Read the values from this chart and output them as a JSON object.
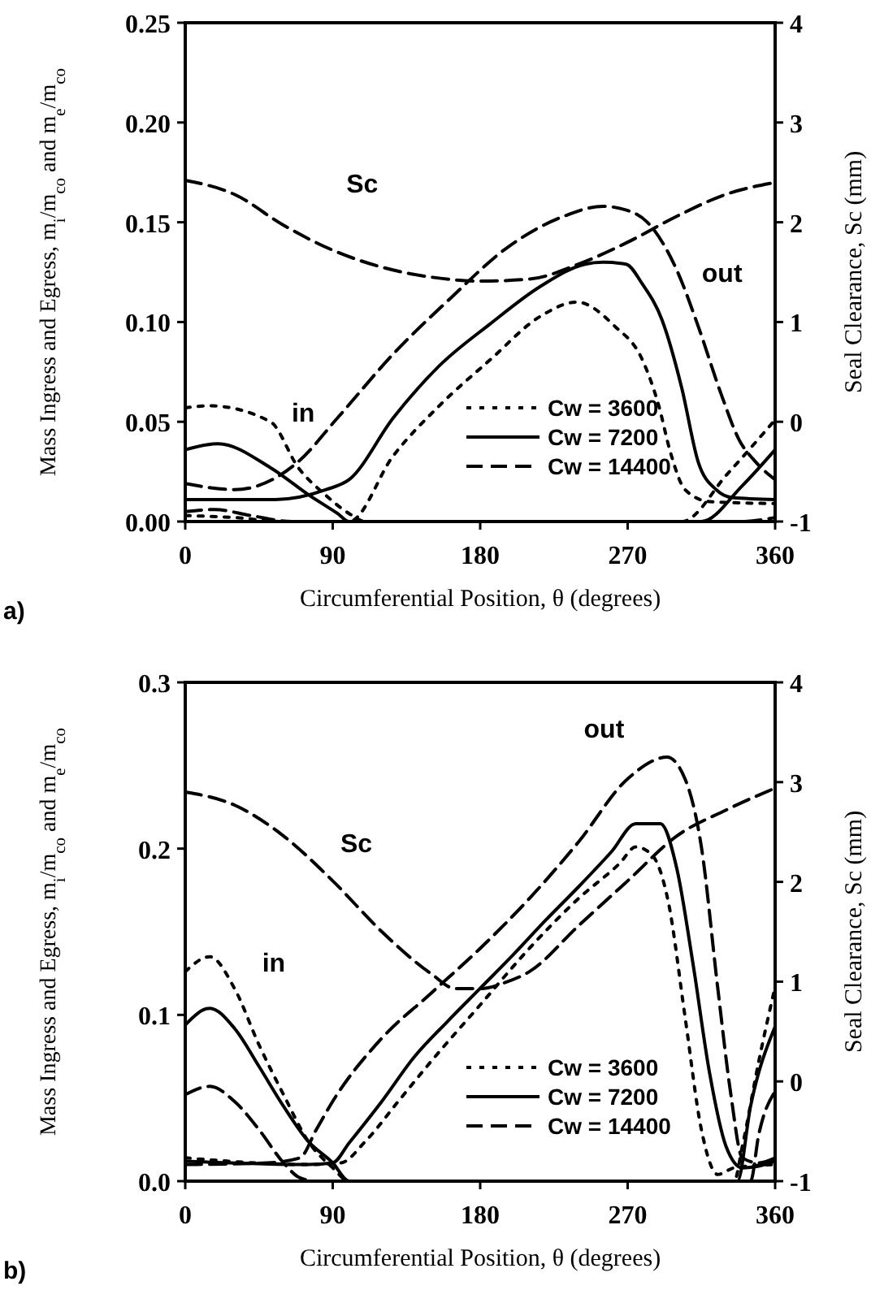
{
  "chart_data": [
    {
      "type": "line",
      "title": "a)",
      "xlabel": "Circumferential Position, θ (degrees)",
      "ylabel": "Mass Ingress and Egress, m$_{i}$/m$_{co}$ and m$_{e}$/m$_{co}$",
      "y2label": "Seal Clearance, Sc (mm)",
      "xlim": [
        0,
        360
      ],
      "xticks": [
        0,
        90,
        180,
        270,
        360
      ],
      "ylim": [
        0,
        0.25
      ],
      "yticks": [
        {
          "value": 0,
          "label": "0.00"
        },
        {
          "value": 0.05,
          "label": "0.05"
        },
        {
          "value": 0.1,
          "label": "0.10"
        },
        {
          "value": 0.15,
          "label": "0.15"
        },
        {
          "value": 0.2,
          "label": "0.20"
        },
        {
          "value": 0.25,
          "label": "0.25"
        }
      ],
      "y2lim": [
        -1,
        4
      ],
      "y2ticks": [
        -1,
        0,
        1,
        2,
        3,
        4
      ],
      "legend": "bottom right",
      "grid": false,
      "marker": "none",
      "annotations": [
        "Sc",
        "in",
        "out"
      ],
      "series": [
        {
          "name": "Cw = 3600",
          "color": "#000000",
          "line_style": "dotted",
          "x": [
            0,
            30,
            60,
            100,
            127,
            155,
            186,
            217,
            239,
            262,
            279,
            289,
            296,
            305,
            320,
            360
          ],
          "values": [
            0.003,
            0.002,
            0,
            0,
            0.033,
            0.058,
            0.081,
            0.103,
            0.11,
            0.098,
            0.081,
            0.058,
            0.035,
            0.016,
            0.01,
            0.009
          ]
        },
        {
          "color": "#000000",
          "line_style": "dotted",
          "x": [
            0,
            15,
            52,
            69,
            86,
            100,
            110,
            303,
            331,
            360
          ],
          "values": [
            0.057,
            0.058,
            0.05,
            0.027,
            0.013,
            0.004,
            0,
            0,
            0.024,
            0.051
          ]
        },
        {
          "name": "Cw = 7200",
          "color": "#000000",
          "line_style": "solid",
          "x": [
            0,
            55,
            86,
            100,
            127,
            155,
            186,
            217,
            244,
            255,
            269,
            279,
            291,
            303,
            313,
            324,
            334,
            360
          ],
          "values": [
            0.011,
            0.011,
            0.016,
            0.021,
            0.052,
            0.078,
            0.099,
            0.118,
            0.129,
            0.13,
            0.129,
            0.119,
            0.101,
            0.067,
            0.03,
            0.016,
            0.012,
            0.011
          ]
        },
        {
          "color": "#000000",
          "line_style": "solid",
          "x": [
            0,
            20,
            52,
            76,
            93,
            100,
            315,
            340,
            360
          ],
          "values": [
            0.036,
            0.039,
            0.027,
            0.013,
            0.004,
            0,
            0,
            0.018,
            0.036
          ]
        },
        {
          "name": "Cw = 14400",
          "color": "#000000",
          "line_style": "dashed",
          "x": [
            0,
            30,
            69,
            93,
            127,
            162,
            196,
            231,
            255,
            265,
            282,
            300,
            313,
            327,
            338,
            348,
            360
          ],
          "values": [
            0.019,
            0.016,
            0.03,
            0.052,
            0.084,
            0.112,
            0.137,
            0.153,
            0.158,
            0.157,
            0.15,
            0.126,
            0.098,
            0.064,
            0.041,
            0.03,
            0.021
          ]
        },
        {
          "color": "#000000",
          "line_style": "dashed",
          "x": [
            0,
            18,
            40,
            65,
            340,
            360
          ],
          "values": [
            0.005,
            0.006,
            0.003,
            0,
            0,
            0.002
          ]
        },
        {
          "color": "#000000",
          "line_style": "dashed",
          "axis": "y2",
          "x": [
            0,
            30,
            60,
            90,
            120,
            150,
            180,
            210,
            240,
            270,
            300,
            330,
            360
          ],
          "values": [
            2.42,
            2.28,
            1.97,
            1.72,
            1.55,
            1.45,
            1.41,
            1.43,
            1.58,
            1.8,
            2.06,
            2.28,
            2.4
          ]
        }
      ]
    },
    {
      "type": "line",
      "title": "b)",
      "xlabel": "Circumferential Position, θ (degrees)",
      "ylabel": "Mass Ingress and Egress, m$_{i}$/m$_{co}$ and m$_{e}$/m$_{co}$",
      "y2label": "Seal Clearance, Sc (mm)",
      "xlim": [
        0,
        360
      ],
      "xticks": [
        0,
        90,
        180,
        270,
        360
      ],
      "ylim": [
        0,
        0.3
      ],
      "yticks": [
        {
          "value": 0,
          "label": "0.0"
        },
        {
          "value": 0.1,
          "label": "0.1"
        },
        {
          "value": 0.2,
          "label": "0.2"
        },
        {
          "value": 0.3,
          "label": "0.3"
        }
      ],
      "y2lim": [
        -1,
        4
      ],
      "y2ticks": [
        -1,
        0,
        1,
        2,
        3,
        4
      ],
      "legend": "bottom right",
      "grid": false,
      "marker": "none",
      "annotations": [
        "Sc",
        "in",
        "out"
      ],
      "series": [
        {
          "name": "Cw = 3600",
          "color": "#000000",
          "line_style": "dotted",
          "x": [
            0,
            75,
            95,
            110,
            130,
            150,
            180,
            210,
            240,
            265,
            275,
            285,
            295,
            305,
            315,
            325,
            335,
            360
          ],
          "values": [
            0.014,
            0.01,
            0.011,
            0.024,
            0.048,
            0.072,
            0.106,
            0.14,
            0.17,
            0.191,
            0.201,
            0.196,
            0.167,
            0.099,
            0.031,
            0.004,
            0.008,
            0.01
          ]
        },
        {
          "color": "#000000",
          "line_style": "dotted",
          "x": [
            0,
            15,
            30,
            45,
            60,
            75,
            90,
            100,
            335,
            340,
            350,
            360
          ],
          "values": [
            0.126,
            0.135,
            0.116,
            0.082,
            0.052,
            0.024,
            0.008,
            0,
            0,
            0.021,
            0.072,
            0.117
          ]
        },
        {
          "name": "Cw = 7200",
          "color": "#000000",
          "line_style": "solid",
          "x": [
            0,
            75,
            90,
            100,
            120,
            140,
            160,
            180,
            200,
            220,
            240,
            260,
            275,
            290,
            300,
            310,
            320,
            330,
            340,
            350,
            360
          ],
          "values": [
            0.012,
            0.01,
            0.011,
            0.023,
            0.048,
            0.075,
            0.096,
            0.116,
            0.136,
            0.157,
            0.177,
            0.198,
            0.215,
            0.215,
            0.188,
            0.13,
            0.065,
            0.021,
            0.008,
            0.009,
            0.012
          ]
        },
        {
          "color": "#000000",
          "line_style": "solid",
          "x": [
            0,
            15,
            30,
            45,
            60,
            75,
            90,
            100,
            337,
            345,
            360
          ],
          "values": [
            0.094,
            0.104,
            0.092,
            0.069,
            0.045,
            0.024,
            0.011,
            0,
            0,
            0.045,
            0.093
          ]
        },
        {
          "name": "Cw = 14400",
          "color": "#000000",
          "line_style": "dashed",
          "x": [
            0,
            50,
            70,
            80,
            90,
            120,
            150,
            180,
            210,
            240,
            270,
            294,
            305,
            315,
            325,
            333,
            340,
            350,
            360
          ],
          "values": [
            0.01,
            0.011,
            0.014,
            0.031,
            0.048,
            0.086,
            0.113,
            0.14,
            0.17,
            0.204,
            0.242,
            0.255,
            0.242,
            0.201,
            0.116,
            0.052,
            0.014,
            0.011,
            0.014
          ]
        },
        {
          "color": "#000000",
          "line_style": "dashed",
          "x": [
            0,
            15,
            30,
            45,
            60,
            70,
            80,
            345,
            350,
            360
          ],
          "values": [
            0.052,
            0.057,
            0.048,
            0.031,
            0.011,
            0.002,
            0,
            0,
            0.028,
            0.054
          ]
        },
        {
          "color": "#000000",
          "line_style": "dashed",
          "axis": "y2",
          "x": [
            0,
            30,
            60,
            90,
            120,
            150,
            165,
            180,
            195,
            210,
            240,
            270,
            300,
            330,
            360
          ],
          "values": [
            2.9,
            2.77,
            2.46,
            2.01,
            1.5,
            1.08,
            0.93,
            0.93,
            0.99,
            1.1,
            1.56,
            2.01,
            2.46,
            2.72,
            2.94
          ]
        }
      ]
    }
  ]
}
